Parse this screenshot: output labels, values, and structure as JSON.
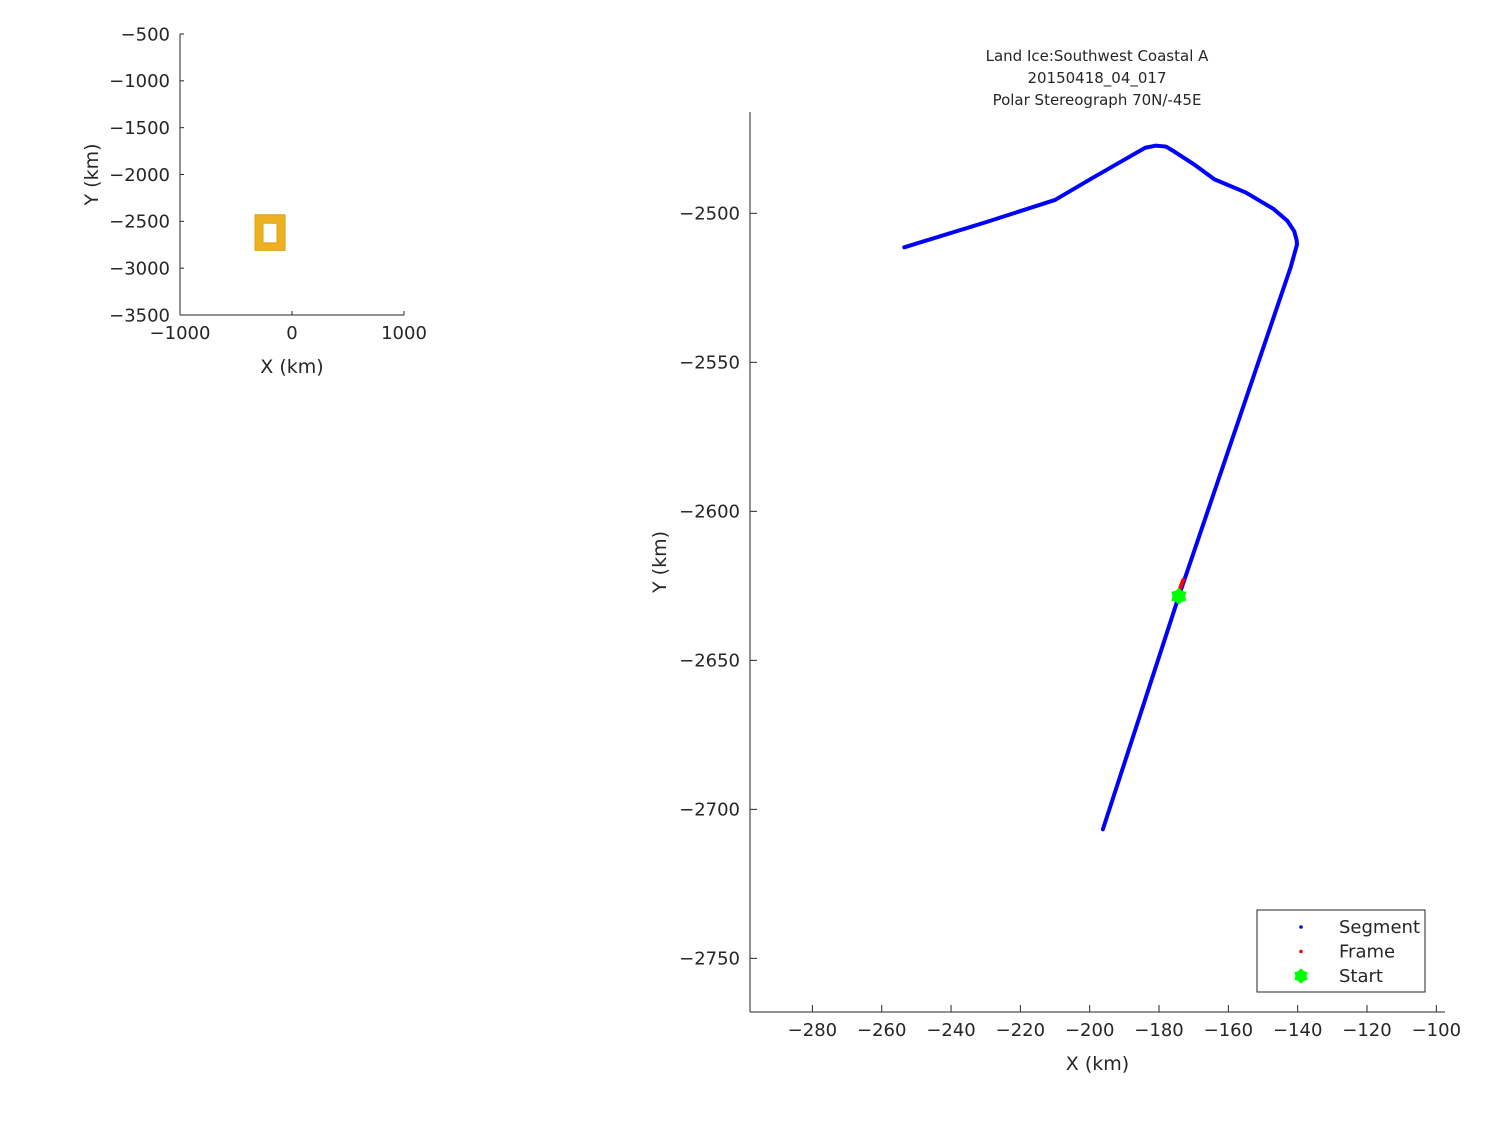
{
  "chart_data": [
    {
      "type": "area",
      "title": "",
      "xlabel": "X (km)",
      "ylabel": "Y (km)",
      "xlim": [
        -1000,
        1000
      ],
      "ylim": [
        -3500,
        -500
      ],
      "xticks": [
        -1000,
        0,
        1000
      ],
      "yticks": [
        -3500,
        -3000,
        -2500,
        -2000,
        -1500,
        -1000,
        -500
      ],
      "grid": false,
      "region_color": "#EDB120",
      "region_outer": [
        [
          -330,
          -2430
        ],
        [
          -62,
          -2430
        ],
        [
          -62,
          -2810
        ],
        [
          -330,
          -2810
        ]
      ],
      "region_inner": [
        [
          -259,
          -2520
        ],
        [
          -134,
          -2520
        ],
        [
          -134,
          -2730
        ],
        [
          -259,
          -2730
        ]
      ]
    },
    {
      "type": "line",
      "title": [
        "Land Ice:Southwest Coastal A",
        "20150418_04_017",
        "Polar Stereograph 70N/-45E"
      ],
      "xlabel": "X (km)",
      "ylabel": "Y (km)",
      "xlim": [
        -298,
        -97.5
      ],
      "ylim": [
        -2768,
        -2466
      ],
      "xticks": [
        -280,
        -260,
        -240,
        -220,
        -200,
        -180,
        -160,
        -140,
        -120,
        -100
      ],
      "yticks": [
        -2750,
        -2700,
        -2650,
        -2600,
        -2550,
        -2500
      ],
      "grid": false,
      "legend_placement": "bottom-right",
      "series": [
        {
          "name": "Segment",
          "color": "#0000FF",
          "x": [
            -253.5,
            -230,
            -210,
            -199,
            -190,
            -184,
            -181,
            -178,
            -176,
            -170,
            -164,
            -155,
            -147,
            -143,
            -141,
            -140.3,
            -140.2,
            -142,
            -174.3,
            -196.2
          ],
          "y": [
            -2511.4,
            -2503,
            -2495.5,
            -2488,
            -2482,
            -2478,
            -2477.3,
            -2477.6,
            -2479,
            -2483.5,
            -2488.6,
            -2493,
            -2498.5,
            -2502.5,
            -2506,
            -2509,
            -2510.5,
            -2518,
            -2628.5,
            -2706.7
          ]
        },
        {
          "name": "Frame",
          "color": "#FF0000",
          "x": [
            -173.0,
            -174.0
          ],
          "y": [
            -2623.0,
            -2626.0
          ]
        },
        {
          "name": "Start",
          "color": "#00FF00",
          "marker": "hexagram",
          "x": [
            -174.3
          ],
          "y": [
            -2628.5
          ]
        }
      ]
    }
  ]
}
